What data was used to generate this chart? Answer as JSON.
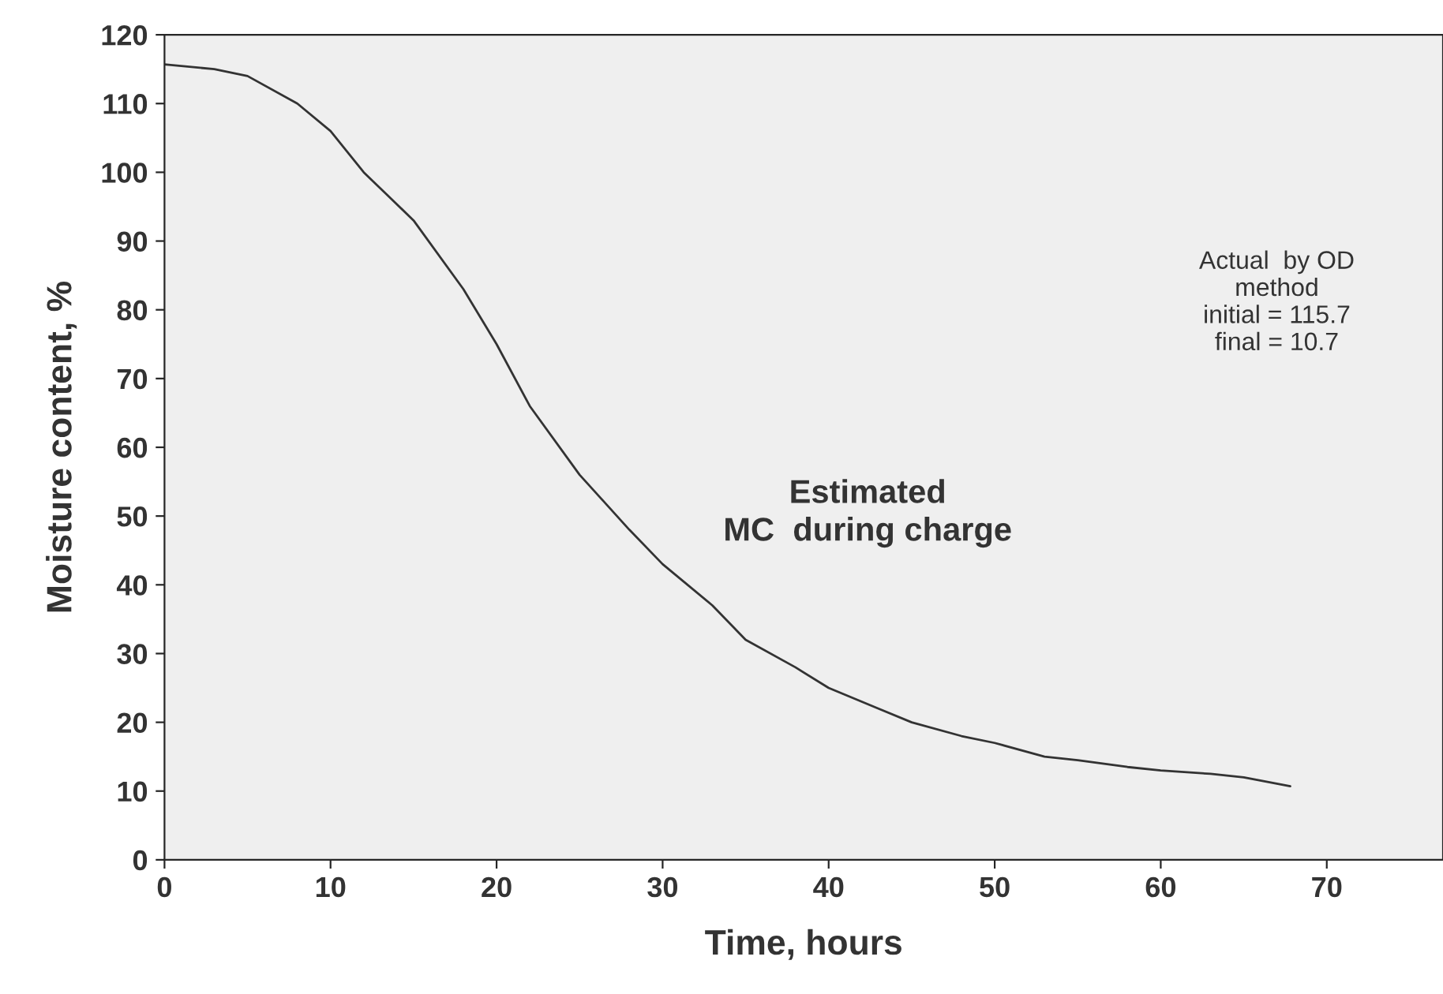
{
  "chart_data": {
    "type": "line",
    "xlabel": "Time, hours",
    "ylabel": "Moisture content, %",
    "series": [
      {
        "color": "#333333",
        "x": [
          0,
          3,
          5,
          8,
          10,
          12,
          15,
          18,
          20,
          22,
          25,
          28,
          30,
          33,
          35,
          38,
          40,
          43,
          45,
          48,
          50,
          53,
          55,
          58,
          60,
          63,
          65,
          67.8
        ],
        "values": [
          115.7,
          115,
          114,
          110,
          106,
          100,
          93,
          83,
          75,
          66,
          56,
          48,
          43,
          37,
          32,
          28,
          25,
          22,
          20,
          18,
          17,
          15,
          14.5,
          13.5,
          13,
          12.5,
          12,
          10.7
        ]
      }
    ],
    "annotations": [
      "Estimated\nMC  during charge",
      "Actual  by OD\nmethod\ninitial = 115.7\nfinal = 10.7"
    ],
    "xlim": [
      0,
      77
    ],
    "xticks": [
      0,
      10,
      20,
      30,
      40,
      50,
      60,
      70
    ],
    "ylim": [
      0,
      120
    ],
    "yticks": [
      0,
      10,
      20,
      30,
      40,
      50,
      60,
      70,
      80,
      90,
      100,
      110,
      120
    ],
    "grid": false,
    "marker": "none",
    "line_style": "solid"
  }
}
